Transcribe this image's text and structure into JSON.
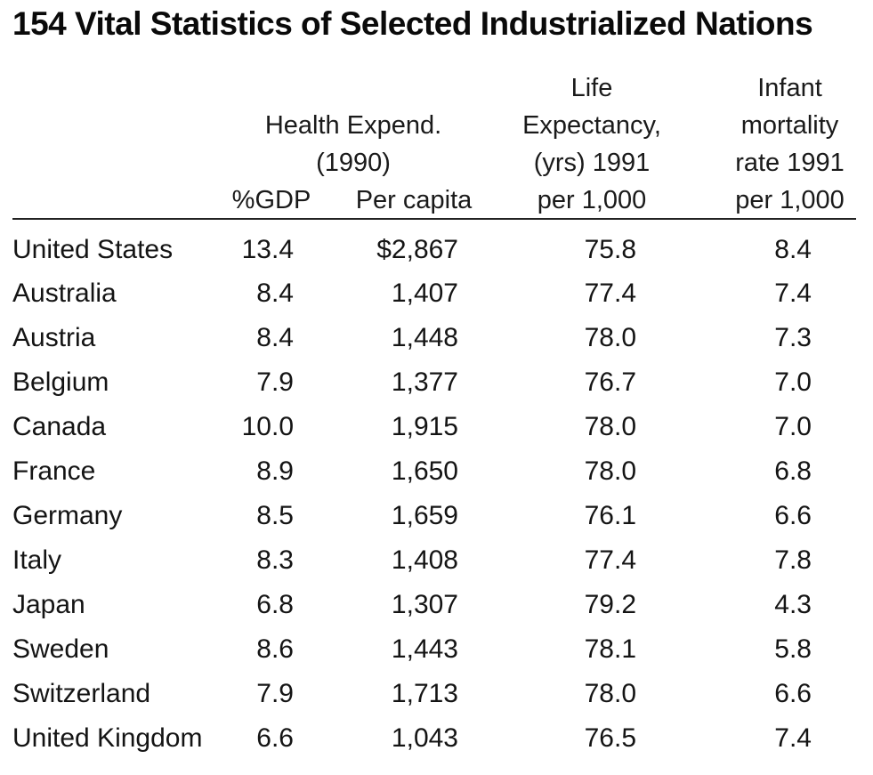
{
  "title": "154 Vital Statistics of Selected Industrialized Nations",
  "headers": {
    "health_group": "Health Expend.",
    "health_year": "(1990)",
    "gdp": "%GDP",
    "per_capita": "Per capita",
    "life": [
      "Life",
      "Expectancy,",
      "(yrs) 1991",
      "per 1,000"
    ],
    "infant": [
      "Infant",
      "mortality",
      "rate 1991",
      "per 1,000"
    ]
  },
  "rows": [
    {
      "country": "United States",
      "gdp": "13.4",
      "per_capita": "$2,867",
      "life": "75.8",
      "infant": "8.4"
    },
    {
      "country": "Australia",
      "gdp": "8.4",
      "per_capita": "1,407",
      "life": "77.4",
      "infant": "7.4"
    },
    {
      "country": "Austria",
      "gdp": "8.4",
      "per_capita": "1,448",
      "life": "78.0",
      "infant": "7.3"
    },
    {
      "country": "Belgium",
      "gdp": "7.9",
      "per_capita": "1,377",
      "life": "76.7",
      "infant": "7.0"
    },
    {
      "country": "Canada",
      "gdp": "10.0",
      "per_capita": "1,915",
      "life": "78.0",
      "infant": "7.0"
    },
    {
      "country": "France",
      "gdp": "8.9",
      "per_capita": "1,650",
      "life": "78.0",
      "infant": "6.8"
    },
    {
      "country": "Germany",
      "gdp": "8.5",
      "per_capita": "1,659",
      "life": "76.1",
      "infant": "6.6"
    },
    {
      "country": "Italy",
      "gdp": "8.3",
      "per_capita": "1,408",
      "life": "77.4",
      "infant": "7.8"
    },
    {
      "country": "Japan",
      "gdp": "6.8",
      "per_capita": "1,307",
      "life": "79.2",
      "infant": "4.3"
    },
    {
      "country": "Sweden",
      "gdp": "8.6",
      "per_capita": "1,443",
      "life": "78.1",
      "infant": "5.8"
    },
    {
      "country": "Switzerland",
      "gdp": "7.9",
      "per_capita": "1,713",
      "life": "78.0",
      "infant": "6.6"
    },
    {
      "country": "United Kingdom",
      "gdp": "6.6",
      "per_capita": "1,043",
      "life": "76.5",
      "infant": "7.4"
    }
  ]
}
